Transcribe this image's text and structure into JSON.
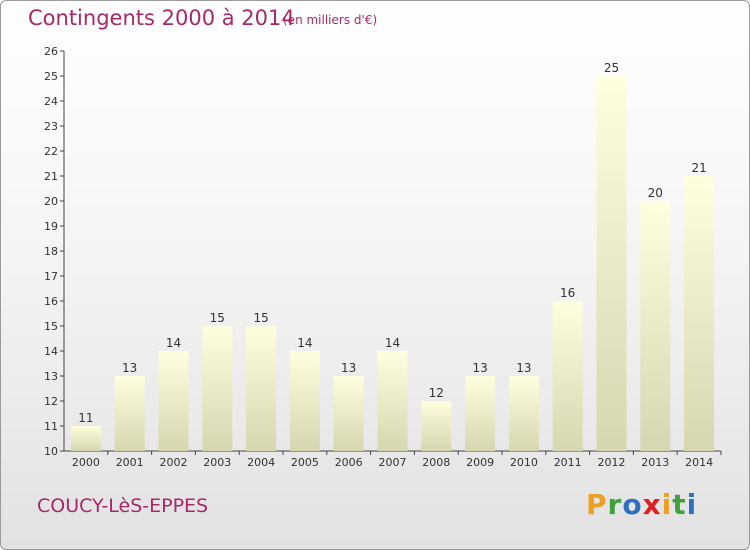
{
  "header": {
    "title": "Contingents 2000 à 2014",
    "unit_note": "(en milliers d'€)"
  },
  "footer": {
    "commune_name": "COUCY-LèS-EPPES",
    "logo_letters": [
      "P",
      "r",
      "o",
      "x",
      "i",
      "t",
      "i"
    ],
    "logo_colors": [
      "#f0a020",
      "#40a040",
      "#3070c0",
      "#e02020",
      "#f0a020",
      "#40a040",
      "#3070c0"
    ]
  },
  "chart_data": {
    "type": "bar",
    "title": "Contingents 2000 à 2014",
    "subtitle": "(en milliers d'€)",
    "categories": [
      "2000",
      "2001",
      "2002",
      "2003",
      "2004",
      "2005",
      "2006",
      "2007",
      "2008",
      "2009",
      "2010",
      "2011",
      "2012",
      "2013",
      "2014"
    ],
    "values": [
      11,
      13,
      14,
      15,
      15,
      14,
      13,
      14,
      12,
      13,
      13,
      16,
      25,
      20,
      21
    ],
    "data_labels": [
      "11",
      "13",
      "14",
      "15",
      "15",
      "14",
      "13",
      "14",
      "12",
      "13",
      "13",
      "16",
      "25",
      "20",
      "21"
    ],
    "ylim": [
      10,
      26
    ],
    "yticks": [
      "10",
      "11",
      "12",
      "13",
      "14",
      "15",
      "16",
      "17",
      "18",
      "19",
      "20",
      "21",
      "22",
      "23",
      "24",
      "25",
      "26"
    ],
    "grid": false,
    "legend": "none",
    "bar_color_top": "#ffffe0",
    "bar_color_bottom": "#d6d6b0"
  }
}
